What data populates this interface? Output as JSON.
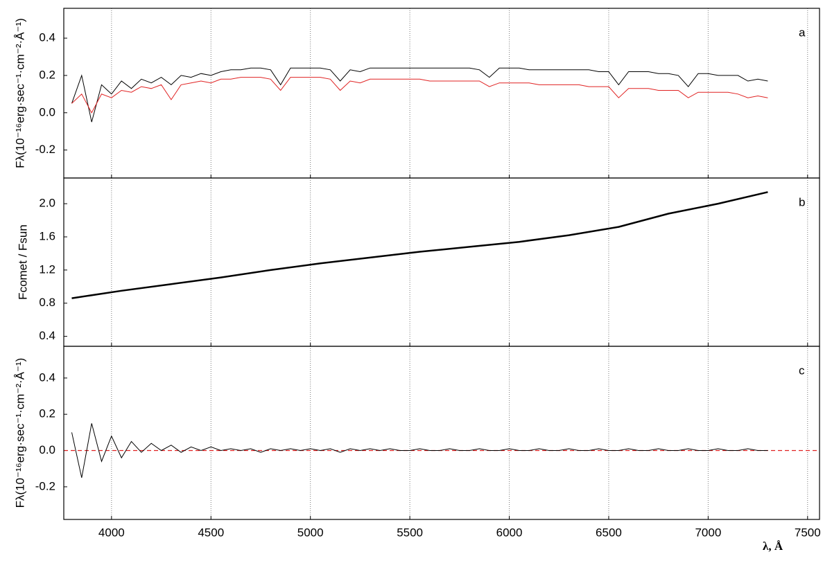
{
  "chart_data": [
    {
      "type": "line",
      "panel_label": "a",
      "ylabel": "Fλ(10⁻¹⁶erg·sec⁻¹·cm⁻²·Å⁻¹)",
      "xlim": [
        3760,
        7560
      ],
      "xticks": [
        4000,
        4500,
        5000,
        5500,
        6000,
        6500,
        7000,
        7500
      ],
      "ylim": [
        -0.35,
        0.56
      ],
      "yticks": [
        0.4,
        0.2,
        {
          "value": 0,
          "label": "0.0"
        },
        -0.2
      ],
      "grid": "x",
      "x": [
        3800,
        3850,
        3900,
        3950,
        4000,
        4050,
        4100,
        4150,
        4200,
        4250,
        4300,
        4350,
        4400,
        4450,
        4500,
        4550,
        4600,
        4650,
        4700,
        4750,
        4800,
        4850,
        4900,
        4950,
        5000,
        5050,
        5100,
        5150,
        5200,
        5250,
        5300,
        5350,
        5400,
        5450,
        5500,
        5550,
        5600,
        5650,
        5700,
        5750,
        5800,
        5850,
        5900,
        5950,
        6000,
        6050,
        6100,
        6150,
        6200,
        6250,
        6300,
        6350,
        6400,
        6450,
        6500,
        6550,
        6600,
        6650,
        6700,
        6750,
        6800,
        6850,
        6900,
        6950,
        7000,
        7050,
        7100,
        7150,
        7200,
        7250,
        7300
      ],
      "series": [
        {
          "color": "#000000",
          "values": [
            0.05,
            0.2,
            -0.05,
            0.15,
            0.1,
            0.17,
            0.13,
            0.18,
            0.16,
            0.19,
            0.15,
            0.2,
            0.19,
            0.21,
            0.2,
            0.22,
            0.23,
            0.23,
            0.24,
            0.24,
            0.23,
            0.15,
            0.24,
            0.24,
            0.24,
            0.24,
            0.23,
            0.17,
            0.23,
            0.22,
            0.24,
            0.24,
            0.24,
            0.24,
            0.24,
            0.24,
            0.24,
            0.24,
            0.24,
            0.24,
            0.24,
            0.23,
            0.19,
            0.24,
            0.24,
            0.24,
            0.23,
            0.23,
            0.23,
            0.23,
            0.23,
            0.23,
            0.23,
            0.22,
            0.22,
            0.15,
            0.22,
            0.22,
            0.22,
            0.21,
            0.21,
            0.2,
            0.14,
            0.21,
            0.21,
            0.2,
            0.2,
            0.2,
            0.17,
            0.18,
            0.17
          ]
        },
        {
          "color": "#e02020",
          "values": [
            0.05,
            0.1,
            0.0,
            0.1,
            0.08,
            0.12,
            0.11,
            0.14,
            0.13,
            0.15,
            0.07,
            0.15,
            0.16,
            0.17,
            0.16,
            0.18,
            0.18,
            0.19,
            0.19,
            0.19,
            0.18,
            0.12,
            0.19,
            0.19,
            0.19,
            0.19,
            0.18,
            0.12,
            0.17,
            0.16,
            0.18,
            0.18,
            0.18,
            0.18,
            0.18,
            0.18,
            0.17,
            0.17,
            0.17,
            0.17,
            0.17,
            0.17,
            0.14,
            0.16,
            0.16,
            0.16,
            0.16,
            0.15,
            0.15,
            0.15,
            0.15,
            0.15,
            0.14,
            0.14,
            0.14,
            0.08,
            0.13,
            0.13,
            0.13,
            0.12,
            0.12,
            0.12,
            0.08,
            0.11,
            0.11,
            0.11,
            0.11,
            0.1,
            0.08,
            0.09,
            0.08
          ]
        }
      ]
    },
    {
      "type": "line",
      "panel_label": "b",
      "ylabel": "Fcomet / Fsun",
      "xlim": [
        3760,
        7560
      ],
      "xticks": [
        4000,
        4500,
        5000,
        5500,
        6000,
        6500,
        7000,
        7500
      ],
      "ylim": [
        0.28,
        2.31
      ],
      "yticks": [
        {
          "value": 2,
          "label": "2.0"
        },
        1.6,
        1.2,
        0.8,
        0.4
      ],
      "grid": "x",
      "x": [
        3800,
        4050,
        4300,
        4550,
        4800,
        5050,
        5300,
        5550,
        5800,
        6050,
        6300,
        6550,
        6800,
        7050,
        7300
      ],
      "series": [
        {
          "color": "#000000",
          "values": [
            0.86,
            0.95,
            1.03,
            1.11,
            1.2,
            1.28,
            1.35,
            1.42,
            1.48,
            1.54,
            1.62,
            1.72,
            1.88,
            2.0,
            2.14
          ]
        }
      ]
    },
    {
      "type": "line",
      "panel_label": "c",
      "ylabel": "Fλ(10⁻¹⁶erg·sec⁻¹·cm⁻²·Å⁻¹)",
      "xlabel": "λ, Å",
      "xlim": [
        3760,
        7560
      ],
      "xticks": [
        4000,
        4500,
        5000,
        5500,
        6000,
        6500,
        7000,
        7500
      ],
      "ylim": [
        -0.38,
        0.575
      ],
      "yticks": [
        0.4,
        0.2,
        {
          "value": 0,
          "label": "0.0"
        },
        -0.2
      ],
      "grid": "x",
      "reference_line": {
        "y": 0,
        "color": "#e02020"
      },
      "x": [
        3800,
        3850,
        3900,
        3950,
        4000,
        4050,
        4100,
        4150,
        4200,
        4250,
        4300,
        4350,
        4400,
        4450,
        4500,
        4550,
        4600,
        4650,
        4700,
        4750,
        4800,
        4850,
        4900,
        4950,
        5000,
        5050,
        5100,
        5150,
        5200,
        5250,
        5300,
        5350,
        5400,
        5450,
        5500,
        5550,
        5600,
        5650,
        5700,
        5750,
        5800,
        5850,
        5900,
        5950,
        6000,
        6050,
        6100,
        6150,
        6200,
        6250,
        6300,
        6350,
        6400,
        6450,
        6500,
        6550,
        6600,
        6650,
        6700,
        6750,
        6800,
        6850,
        6900,
        6950,
        7000,
        7050,
        7100,
        7150,
        7200,
        7250,
        7300
      ],
      "series": [
        {
          "color": "#000000",
          "values": [
            0.1,
            -0.15,
            0.15,
            -0.06,
            0.08,
            -0.04,
            0.05,
            -0.01,
            0.04,
            0.0,
            0.03,
            -0.01,
            0.02,
            0.0,
            0.02,
            0.0,
            0.01,
            0.0,
            0.01,
            -0.01,
            0.01,
            0.0,
            0.01,
            0.0,
            0.01,
            0.0,
            0.01,
            -0.01,
            0.01,
            0.0,
            0.01,
            0.0,
            0.01,
            0.0,
            0.0,
            0.01,
            0.0,
            0.0,
            0.01,
            0.0,
            0.0,
            0.01,
            0.0,
            0.0,
            0.01,
            0.0,
            0.0,
            0.01,
            0.0,
            0.0,
            0.01,
            0.0,
            0.0,
            0.01,
            0.0,
            0.0,
            0.01,
            0.0,
            0.0,
            0.01,
            0.0,
            0.0,
            0.01,
            0.0,
            0.0,
            0.01,
            0.0,
            0.0,
            0.01,
            0.0,
            0.0
          ]
        }
      ]
    }
  ]
}
